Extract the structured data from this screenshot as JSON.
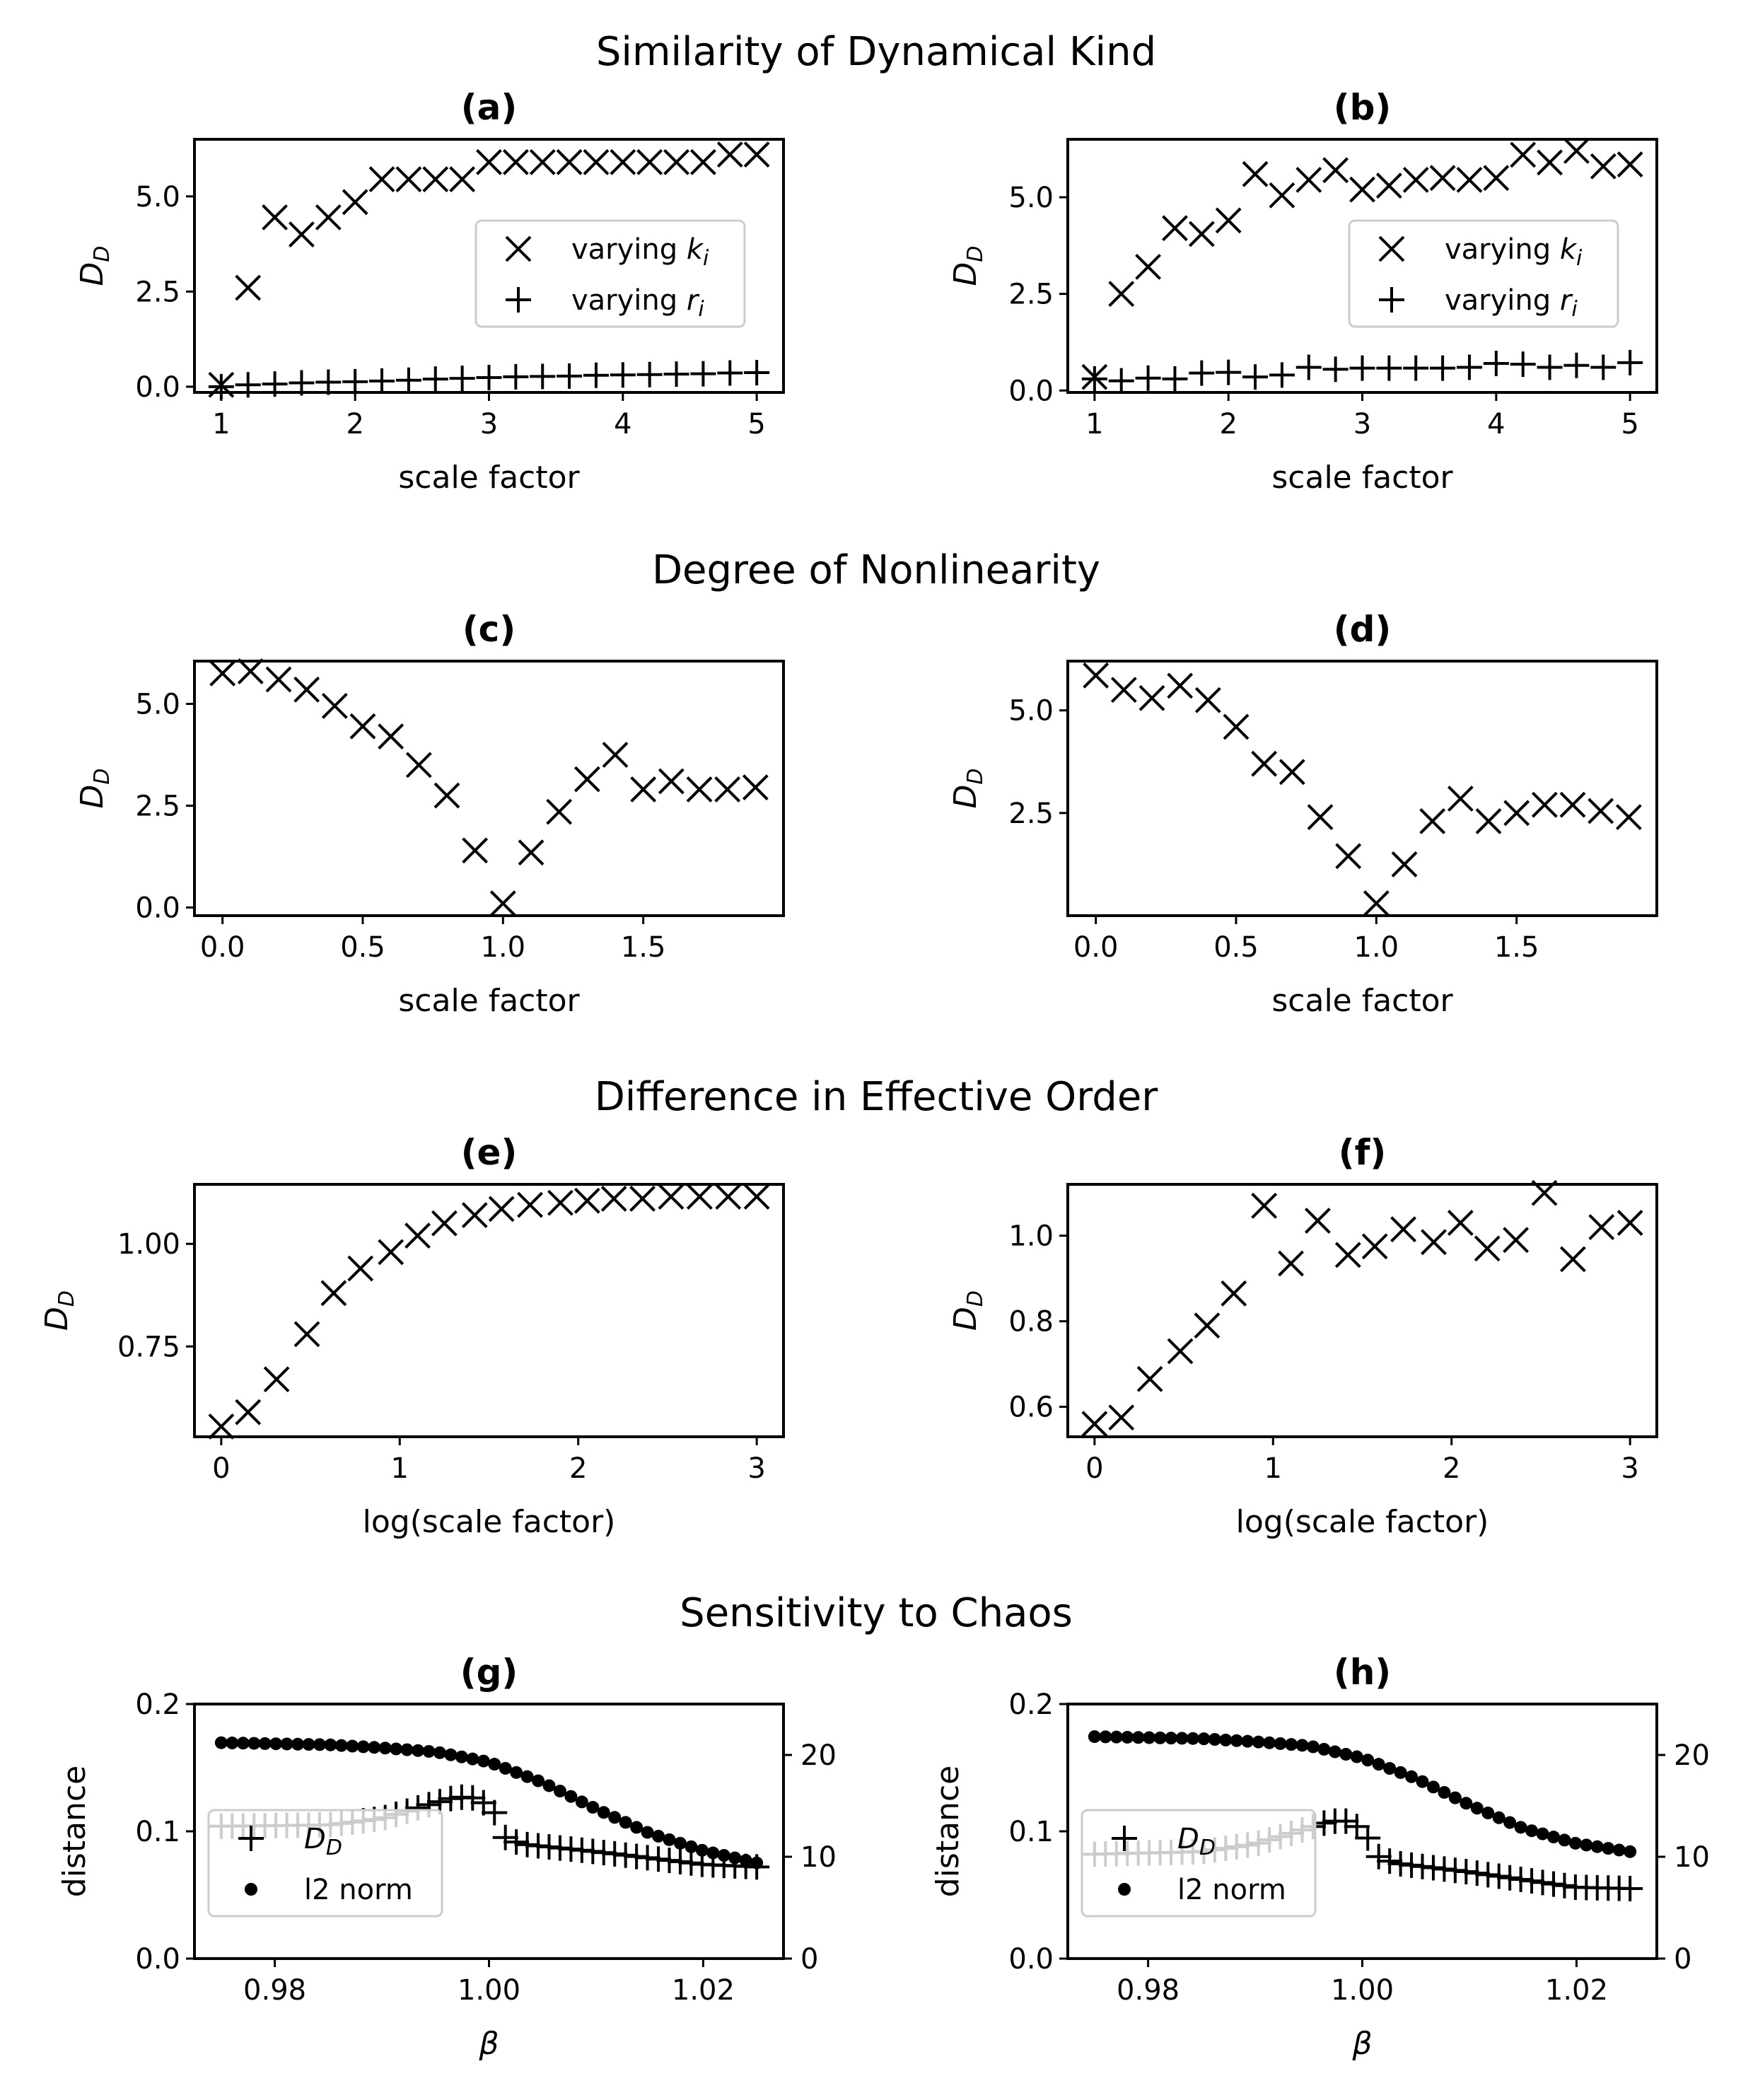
{
  "figure": {
    "sections": [
      {
        "title": "Similarity of Dynamical Kind"
      },
      {
        "title": "Degree of Nonlinearity"
      },
      {
        "title": "Difference in Effective Order"
      },
      {
        "title": "Sensitivity to Chaos"
      }
    ]
  },
  "chart_data": [
    {
      "panel": "(a)",
      "type": "scatter",
      "xlabel": "scale factor",
      "ylabel": "D_D",
      "xlim": [
        0.8,
        5.2
      ],
      "ylim": [
        -0.15,
        6.5
      ],
      "xticks": [
        1,
        2,
        3,
        4,
        5
      ],
      "xtick_labels": [
        "1",
        "2",
        "3",
        "4",
        "5"
      ],
      "yticks": [
        0,
        2.5,
        5
      ],
      "ytick_labels": [
        "0.0",
        "2.5",
        "5.0"
      ],
      "legend": "center-right",
      "series": [
        {
          "name": "varying k_i",
          "marker": "x",
          "x": [
            1,
            1.2,
            1.4,
            1.6,
            1.8,
            2,
            2.2,
            2.4,
            2.6,
            2.8,
            3,
            3.2,
            3.4,
            3.6,
            3.8,
            4,
            4.2,
            4.4,
            4.6,
            4.8,
            5
          ],
          "y": [
            0.05,
            2.6,
            4.45,
            4.0,
            4.45,
            4.85,
            5.45,
            5.45,
            5.45,
            5.45,
            5.9,
            5.9,
            5.9,
            5.9,
            5.9,
            5.9,
            5.9,
            5.9,
            5.9,
            6.1,
            6.1
          ]
        },
        {
          "name": "varying r_i",
          "marker": "+",
          "x": [
            1,
            1.2,
            1.4,
            1.6,
            1.8,
            2,
            2.2,
            2.4,
            2.6,
            2.8,
            3,
            3.2,
            3.4,
            3.6,
            3.8,
            4,
            4.2,
            4.4,
            4.6,
            4.8,
            5
          ],
          "y": [
            0.0,
            0.05,
            0.07,
            0.1,
            0.12,
            0.13,
            0.15,
            0.17,
            0.2,
            0.22,
            0.24,
            0.26,
            0.27,
            0.28,
            0.3,
            0.31,
            0.32,
            0.33,
            0.34,
            0.36,
            0.37
          ]
        }
      ]
    },
    {
      "panel": "(b)",
      "type": "scatter",
      "xlabel": "scale factor",
      "ylabel": "D_D",
      "xlim": [
        0.8,
        5.2
      ],
      "ylim": [
        -0.05,
        6.5
      ],
      "xticks": [
        1,
        2,
        3,
        4,
        5
      ],
      "xtick_labels": [
        "1",
        "2",
        "3",
        "4",
        "5"
      ],
      "yticks": [
        0,
        2.5,
        5
      ],
      "ytick_labels": [
        "0.0",
        "2.5",
        "5.0"
      ],
      "legend": "center-right",
      "series": [
        {
          "name": "varying k_i",
          "marker": "x",
          "x": [
            1,
            1.2,
            1.4,
            1.6,
            1.8,
            2,
            2.2,
            2.4,
            2.6,
            2.8,
            3,
            3.2,
            3.4,
            3.6,
            3.8,
            4,
            4.2,
            4.4,
            4.6,
            4.8,
            5
          ],
          "y": [
            0.35,
            2.5,
            3.2,
            4.2,
            4.05,
            4.4,
            5.6,
            5.05,
            5.45,
            5.7,
            5.2,
            5.3,
            5.45,
            5.5,
            5.45,
            5.5,
            6.1,
            5.9,
            6.2,
            5.8,
            5.85
          ]
        },
        {
          "name": "varying r_i",
          "marker": "+",
          "x": [
            1,
            1.2,
            1.4,
            1.6,
            1.8,
            2,
            2.2,
            2.4,
            2.6,
            2.8,
            3,
            3.2,
            3.4,
            3.6,
            3.8,
            4,
            4.2,
            4.4,
            4.6,
            4.8,
            5
          ],
          "y": [
            0.3,
            0.25,
            0.32,
            0.3,
            0.45,
            0.47,
            0.35,
            0.4,
            0.6,
            0.55,
            0.58,
            0.58,
            0.58,
            0.58,
            0.6,
            0.7,
            0.68,
            0.6,
            0.65,
            0.6,
            0.72
          ]
        }
      ]
    },
    {
      "panel": "(c)",
      "type": "scatter",
      "xlabel": "scale factor",
      "ylabel": "D_D",
      "xlim": [
        -0.1,
        2.0
      ],
      "ylim": [
        -0.2,
        6.05
      ],
      "xticks": [
        0,
        0.5,
        1,
        1.5
      ],
      "xtick_labels": [
        "0.0",
        "0.5",
        "1.0",
        "1.5"
      ],
      "yticks": [
        0,
        2.5,
        5
      ],
      "ytick_labels": [
        "0.0",
        "2.5",
        "5.0"
      ],
      "series": [
        {
          "name": "D_D",
          "marker": "x",
          "x": [
            0,
            0.1,
            0.2,
            0.3,
            0.4,
            0.5,
            0.6,
            0.7,
            0.8,
            0.9,
            1.0,
            1.1,
            1.2,
            1.3,
            1.4,
            1.5,
            1.6,
            1.7,
            1.8,
            1.9
          ],
          "y": [
            5.75,
            5.8,
            5.6,
            5.35,
            4.95,
            4.45,
            4.2,
            3.5,
            2.75,
            1.4,
            0.1,
            1.35,
            2.35,
            3.15,
            3.75,
            2.9,
            3.1,
            2.9,
            2.9,
            2.95
          ]
        }
      ]
    },
    {
      "panel": "(d)",
      "type": "scatter",
      "xlabel": "scale factor",
      "ylabel": "D_D",
      "xlim": [
        -0.1,
        2.0
      ],
      "ylim": [
        0.0,
        6.2
      ],
      "xticks": [
        0,
        0.5,
        1,
        1.5
      ],
      "xtick_labels": [
        "0.0",
        "0.5",
        "1.0",
        "1.5"
      ],
      "yticks": [
        2.5,
        5
      ],
      "ytick_labels": [
        "2.5",
        "5.0"
      ],
      "series": [
        {
          "name": "D_D",
          "marker": "x",
          "x": [
            0,
            0.1,
            0.2,
            0.3,
            0.4,
            0.5,
            0.6,
            0.7,
            0.8,
            0.9,
            1.0,
            1.1,
            1.2,
            1.3,
            1.4,
            1.5,
            1.6,
            1.7,
            1.8,
            1.9
          ],
          "y": [
            5.85,
            5.5,
            5.3,
            5.6,
            5.25,
            4.6,
            3.7,
            3.5,
            2.4,
            1.45,
            0.3,
            1.25,
            2.3,
            2.85,
            2.3,
            2.5,
            2.7,
            2.7,
            2.55,
            2.4
          ]
        }
      ]
    },
    {
      "panel": "(e)",
      "type": "scatter",
      "xlabel": "log(scale factor)",
      "ylabel": "D_D",
      "xlim": [
        -0.15,
        3.15
      ],
      "ylim": [
        0.53,
        1.145
      ],
      "xticks": [
        0,
        1,
        2,
        3
      ],
      "xtick_labels": [
        "0",
        "1",
        "2",
        "3"
      ],
      "yticks": [
        0.75,
        1.0
      ],
      "ytick_labels": [
        "0.75",
        "1.00"
      ],
      "series": [
        {
          "name": "D_D",
          "marker": "x",
          "x": [
            0,
            0.15,
            0.31,
            0.48,
            0.63,
            0.78,
            0.95,
            1.1,
            1.25,
            1.42,
            1.57,
            1.73,
            1.9,
            2.05,
            2.2,
            2.36,
            2.52,
            2.68,
            2.84,
            3.0
          ],
          "y": [
            0.555,
            0.59,
            0.67,
            0.78,
            0.88,
            0.94,
            0.98,
            1.02,
            1.05,
            1.07,
            1.085,
            1.095,
            1.1,
            1.105,
            1.11,
            1.11,
            1.115,
            1.115,
            1.115,
            1.115
          ]
        }
      ]
    },
    {
      "panel": "(f)",
      "type": "scatter",
      "xlabel": "log(scale factor)",
      "ylabel": "D_D",
      "xlim": [
        -0.15,
        3.15
      ],
      "ylim": [
        0.53,
        1.12
      ],
      "xticks": [
        0,
        1,
        2,
        3
      ],
      "xtick_labels": [
        "0",
        "1",
        "2",
        "3"
      ],
      "yticks": [
        0.6,
        0.8,
        1.0
      ],
      "ytick_labels": [
        "0.6",
        "0.8",
        "1.0"
      ],
      "series": [
        {
          "name": "D_D",
          "marker": "x",
          "x": [
            0,
            0.15,
            0.31,
            0.48,
            0.63,
            0.78,
            0.95,
            1.1,
            1.25,
            1.42,
            1.57,
            1.73,
            1.9,
            2.05,
            2.2,
            2.36,
            2.52,
            2.68,
            2.84,
            3.0
          ],
          "y": [
            0.56,
            0.575,
            0.665,
            0.73,
            0.79,
            0.865,
            1.07,
            0.935,
            1.035,
            0.955,
            0.975,
            1.015,
            0.985,
            1.03,
            0.97,
            0.99,
            1.1,
            0.945,
            1.02,
            1.03
          ]
        }
      ]
    },
    {
      "panel": "(g)",
      "type": "scatter",
      "xlabel": "β",
      "ylabel": "distance",
      "xlim": [
        0.9725,
        1.0275
      ],
      "ylim": [
        0,
        0.2
      ],
      "y2lim": [
        0,
        25
      ],
      "xticks": [
        0.98,
        1.0,
        1.02
      ],
      "xtick_labels": [
        "0.98",
        "1.00",
        "1.02"
      ],
      "yticks": [
        0,
        0.1,
        0.2
      ],
      "ytick_labels": [
        "0.0",
        "0.1",
        "0.2"
      ],
      "y2ticks": [
        0,
        10,
        20
      ],
      "y2tick_labels": [
        "0",
        "10",
        "20"
      ],
      "legend": "lower-left",
      "series": [
        {
          "name": "D_D",
          "marker": "+",
          "axis": "left",
          "x_range": [
            0.975,
            1.025
          ],
          "points": 50,
          "x_key": [
            0.975,
            0.985,
            0.99,
            0.994,
            0.997,
            0.999,
            1.0005,
            1.001,
            1.003,
            1.01,
            1.02,
            1.025
          ],
          "y_key": [
            0.104,
            0.105,
            0.11,
            0.12,
            0.127,
            0.126,
            0.115,
            0.097,
            0.09,
            0.084,
            0.074,
            0.072
          ]
        },
        {
          "name": "l2 norm",
          "marker": "o",
          "axis": "right",
          "x_range": [
            0.975,
            1.025
          ],
          "points": 50,
          "x_key": [
            0.975,
            0.985,
            0.99,
            0.995,
            1.0,
            1.005,
            1.01,
            1.015,
            1.02,
            1.025
          ],
          "y_key": [
            21.2,
            21.0,
            20.7,
            20.3,
            19.3,
            17.3,
            14.7,
            12.3,
            10.6,
            9.4
          ]
        }
      ]
    },
    {
      "panel": "(h)",
      "type": "scatter",
      "xlabel": "β",
      "ylabel": "distance",
      "xlim": [
        0.9725,
        1.0275
      ],
      "ylim": [
        0,
        0.2
      ],
      "y2lim": [
        0,
        25
      ],
      "xticks": [
        0.98,
        1.0,
        1.02
      ],
      "xtick_labels": [
        "0.98",
        "1.00",
        "1.02"
      ],
      "yticks": [
        0,
        0.1,
        0.2
      ],
      "ytick_labels": [
        "0.0",
        "0.1",
        "0.2"
      ],
      "y2ticks": [
        0,
        10,
        20
      ],
      "y2tick_labels": [
        "0",
        "10",
        "20"
      ],
      "legend": "lower-left",
      "series": [
        {
          "name": "D_D",
          "marker": "+",
          "axis": "left",
          "x_range": [
            0.975,
            1.025
          ],
          "points": 50,
          "x_key": [
            0.975,
            0.985,
            0.99,
            0.994,
            0.997,
            0.999,
            1.0005,
            1.001,
            1.003,
            1.01,
            1.02,
            1.025
          ],
          "y_key": [
            0.082,
            0.084,
            0.09,
            0.1,
            0.108,
            0.108,
            0.095,
            0.082,
            0.075,
            0.068,
            0.056,
            0.055
          ]
        },
        {
          "name": "l2 norm",
          "marker": "o",
          "axis": "right",
          "x_range": [
            0.975,
            1.025
          ],
          "points": 50,
          "x_key": [
            0.975,
            0.985,
            0.99,
            0.995,
            1.0,
            1.005,
            1.01,
            1.015,
            1.02,
            1.025
          ],
          "y_key": [
            21.8,
            21.6,
            21.3,
            20.9,
            19.7,
            17.7,
            15.1,
            12.8,
            11.3,
            10.5
          ]
        }
      ]
    }
  ]
}
